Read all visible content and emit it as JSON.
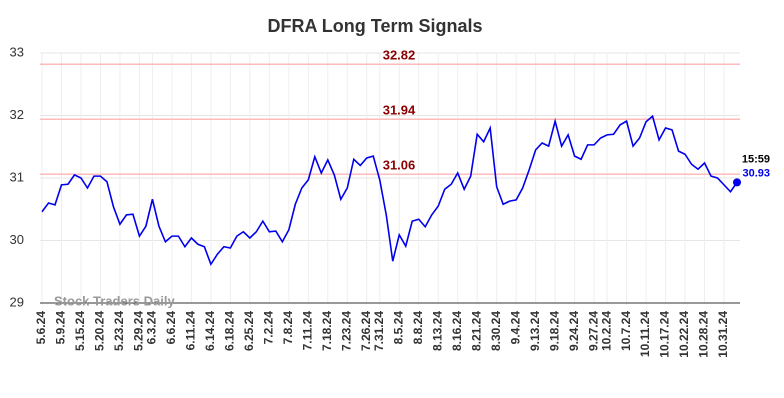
{
  "chart_data": {
    "type": "line",
    "title": "DFRA Long Term Signals",
    "watermark": "Stock Traders Daily",
    "last_time_label": "15:59",
    "categories": [
      "5.6.24",
      null,
      null,
      "5.9.24",
      null,
      null,
      "5.15.24",
      null,
      null,
      "5.20.24",
      null,
      null,
      "5.23.24",
      null,
      null,
      "5.29.24",
      null,
      "6.3.24",
      null,
      null,
      "6.6.24",
      null,
      null,
      "6.11.24",
      null,
      null,
      "6.14.24",
      null,
      null,
      "6.18.24",
      null,
      null,
      "6.25.24",
      null,
      null,
      "7.2.24",
      null,
      null,
      "7.8.24",
      null,
      null,
      "7.11.24",
      null,
      null,
      "7.18.24",
      null,
      null,
      "7.23.24",
      null,
      null,
      "7.26.24",
      null,
      "7.31.24",
      null,
      null,
      "8.5.24",
      null,
      null,
      "8.8.24",
      null,
      null,
      "8.13.24",
      null,
      null,
      "8.16.24",
      null,
      null,
      "8.21.24",
      null,
      null,
      "8.30.24",
      null,
      null,
      "9.4.24",
      null,
      null,
      "9.13.24",
      null,
      null,
      "9.18.24",
      null,
      null,
      "9.24.24",
      null,
      null,
      "9.27.24",
      null,
      "10.2.24",
      null,
      null,
      "10.7.24",
      null,
      null,
      "10.11.24",
      null,
      null,
      "10.17.24",
      null,
      null,
      "10.22.24",
      null,
      null,
      "10.28.24",
      null,
      null,
      "10.31.24",
      null,
      null
    ],
    "series": [
      {
        "color": "#0000ee",
        "values": [
          30.46,
          30.6,
          30.57,
          30.89,
          30.9,
          31.05,
          31.0,
          30.84,
          31.03,
          31.03,
          30.94,
          30.54,
          30.26,
          30.41,
          30.42,
          30.07,
          30.23,
          30.66,
          30.23,
          29.98,
          30.07,
          30.07,
          29.9,
          30.04,
          29.94,
          29.9,
          29.62,
          29.78,
          29.9,
          29.88,
          30.07,
          30.14,
          30.04,
          30.14,
          30.31,
          30.14,
          30.15,
          29.98,
          30.17,
          30.58,
          30.84,
          30.97,
          31.34,
          31.08,
          31.29,
          31.05,
          30.66,
          30.84,
          31.3,
          31.2,
          31.32,
          31.35,
          30.97,
          30.41,
          29.67,
          30.09,
          29.91,
          30.31,
          30.34,
          30.22,
          30.41,
          30.55,
          30.82,
          30.9,
          31.08,
          30.82,
          31.03,
          31.7,
          31.58,
          31.8,
          30.86,
          30.58,
          30.63,
          30.65,
          30.84,
          31.13,
          31.45,
          31.56,
          31.51,
          31.91,
          31.51,
          31.69,
          31.35,
          31.3,
          31.53,
          31.53,
          31.64,
          31.69,
          31.7,
          31.85,
          31.91,
          31.51,
          31.64,
          31.9,
          31.99,
          31.61,
          31.8,
          31.77,
          31.43,
          31.38,
          31.22,
          31.14,
          31.24,
          31.03,
          31.0,
          30.89,
          30.78,
          30.93
        ]
      }
    ],
    "hlines": [
      32.82,
      31.94,
      31.06
    ],
    "hline_color": "#ffbbbb",
    "hline_label_color": "#8b0000",
    "ylim": [
      29,
      33
    ],
    "yticks": [
      29,
      30,
      31,
      32,
      33
    ],
    "grid": true
  }
}
